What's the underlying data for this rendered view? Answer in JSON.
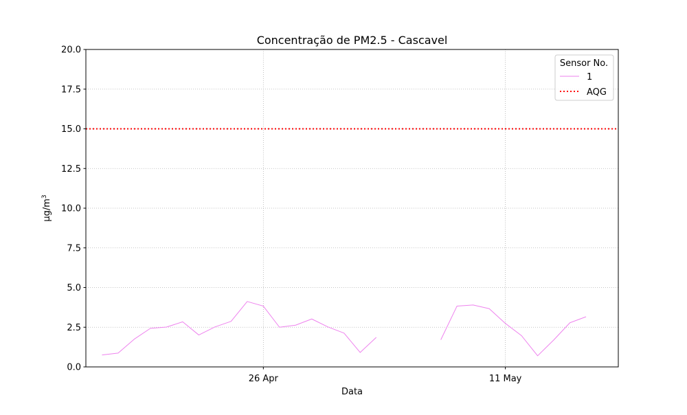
{
  "chart_data": {
    "type": "line",
    "title": "Concentração de PM2.5 - Cascavel",
    "xlabel": "Data",
    "ylabel": "μg/m",
    "ylabel_superscript": "3",
    "ylim": [
      0,
      20
    ],
    "yticks": [
      "0.0",
      "2.5",
      "5.0",
      "7.5",
      "10.0",
      "12.5",
      "15.0",
      "17.5",
      "20.0"
    ],
    "xlim": [
      "2024-04-15",
      "2024-05-18"
    ],
    "xticks": [
      {
        "date": "2024-04-26",
        "label": "26 Apr"
      },
      {
        "date": "2024-05-11",
        "label": "11 May"
      }
    ],
    "grid": true,
    "legend": {
      "title": "Sensor No.",
      "placement": "upper right",
      "entries": [
        "1",
        "AQG"
      ]
    },
    "series": [
      {
        "name": "1",
        "color": "#ee82ee",
        "points": [
          {
            "x": "2024-04-16",
            "y": 0.75
          },
          {
            "x": "2024-04-17",
            "y": 0.87
          },
          {
            "x": "2024-04-18",
            "y": 1.75
          },
          {
            "x": "2024-04-19",
            "y": 2.43
          },
          {
            "x": "2024-04-20",
            "y": 2.51
          },
          {
            "x": "2024-04-21",
            "y": 2.84
          },
          {
            "x": "2024-04-22",
            "y": 2.01
          },
          {
            "x": "2024-04-23",
            "y": 2.52
          },
          {
            "x": "2024-04-24",
            "y": 2.87
          },
          {
            "x": "2024-04-25",
            "y": 4.12
          },
          {
            "x": "2024-04-26",
            "y": 3.83
          },
          {
            "x": "2024-04-27",
            "y": 2.5
          },
          {
            "x": "2024-04-28",
            "y": 2.63
          },
          {
            "x": "2024-04-29",
            "y": 3.02
          },
          {
            "x": "2024-04-30",
            "y": 2.52
          },
          {
            "x": "2024-05-01",
            "y": 2.13
          },
          {
            "x": "2024-05-02",
            "y": 0.91
          },
          {
            "x": "2024-05-03",
            "y": 1.86
          },
          {
            "x": "2024-05-04",
            "y": null
          },
          {
            "x": "2024-05-05",
            "y": null
          },
          {
            "x": "2024-05-06",
            "y": null
          },
          {
            "x": "2024-05-07",
            "y": 1.71
          },
          {
            "x": "2024-05-08",
            "y": 3.83
          },
          {
            "x": "2024-05-09",
            "y": 3.9
          },
          {
            "x": "2024-05-10",
            "y": 3.67
          },
          {
            "x": "2024-05-11",
            "y": 2.74
          },
          {
            "x": "2024-05-12",
            "y": 1.97
          },
          {
            "x": "2024-05-13",
            "y": 0.7
          },
          {
            "x": "2024-05-14",
            "y": 1.7
          },
          {
            "x": "2024-05-15",
            "y": 2.78
          },
          {
            "x": "2024-05-16",
            "y": 3.16
          }
        ]
      },
      {
        "name": "AQG",
        "color": "#ff0000",
        "style": "dotted",
        "y": 15.0
      }
    ]
  }
}
